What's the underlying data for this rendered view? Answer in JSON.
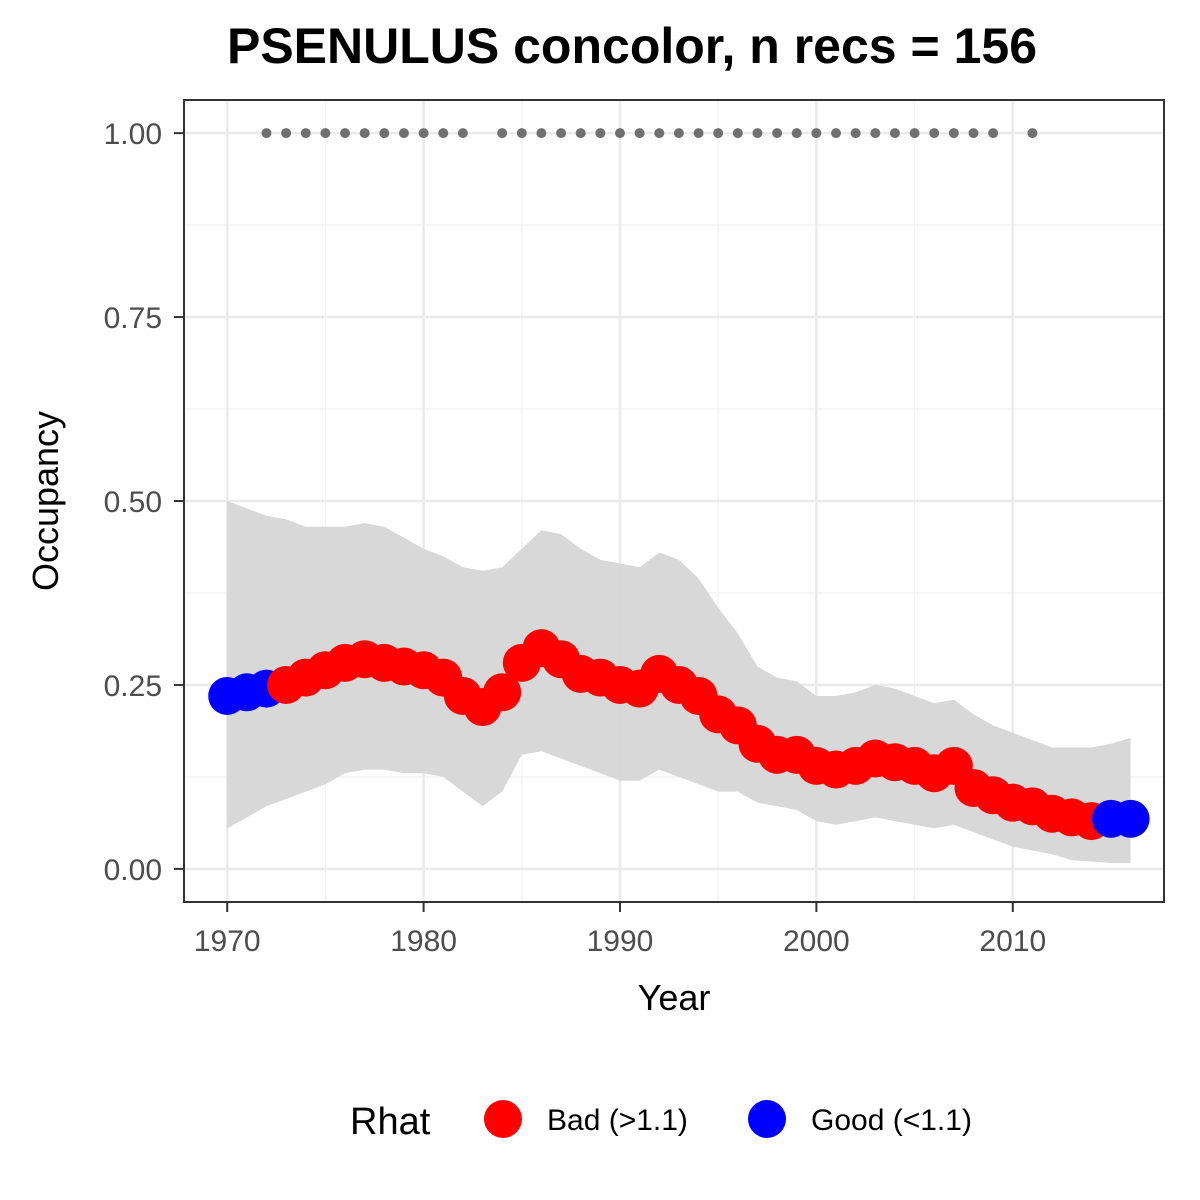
{
  "chart_data": {
    "type": "line",
    "title": "PSENULUS concolor, n recs = 156",
    "xlabel": "Year",
    "ylabel": "Occupancy",
    "xlim": [
      1967.8,
      2017.7
    ],
    "ylim": [
      -0.045,
      1.045
    ],
    "x_ticks": [
      1970,
      1980,
      1990,
      2000,
      2010
    ],
    "x_tick_labels": [
      "1970",
      "1980",
      "1990",
      "2000",
      "2010"
    ],
    "y_ticks": [
      0,
      0.25,
      0.5,
      0.75,
      1
    ],
    "y_tick_labels": [
      "0.00",
      "0.25",
      "0.50",
      "0.75",
      "1.00"
    ],
    "grid": true,
    "legend_position": "bottom",
    "legend": {
      "title": "Rhat",
      "entries": [
        {
          "label": "Bad (>1.1)",
          "color": "#ff0000"
        },
        {
          "label": "Good (<1.1)",
          "color": "#0000ff"
        }
      ]
    },
    "colors": {
      "bad": "#ff0000",
      "good": "#0000ff",
      "ribbon": "#d6d6d6",
      "records": "#707070"
    },
    "series": [
      {
        "x": [
          1970,
          1971,
          1972,
          1973,
          1974,
          1975,
          1976,
          1977,
          1978,
          1979,
          1980,
          1981,
          1982,
          1983,
          1984,
          1985,
          1986,
          1987,
          1988,
          1989,
          1990,
          1991,
          1992,
          1993,
          1994,
          1995,
          1996,
          1997,
          1998,
          1999,
          2000,
          2001,
          2002,
          2003,
          2004,
          2005,
          2006,
          2007,
          2008,
          2009,
          2010,
          2011,
          2012,
          2013,
          2014,
          2015,
          2016
        ],
        "mean": [
          0.235,
          0.24,
          0.245,
          0.25,
          0.26,
          0.27,
          0.28,
          0.285,
          0.28,
          0.275,
          0.27,
          0.26,
          0.235,
          0.22,
          0.24,
          0.28,
          0.3,
          0.285,
          0.265,
          0.26,
          0.25,
          0.245,
          0.265,
          0.25,
          0.235,
          0.21,
          0.195,
          0.17,
          0.155,
          0.155,
          0.14,
          0.135,
          0.14,
          0.15,
          0.145,
          0.14,
          0.13,
          0.14,
          0.11,
          0.1,
          0.09,
          0.085,
          0.075,
          0.07,
          0.065,
          0.068,
          0.068
        ],
        "lower": [
          0.055,
          0.07,
          0.085,
          0.095,
          0.105,
          0.115,
          0.13,
          0.135,
          0.135,
          0.13,
          0.13,
          0.125,
          0.105,
          0.085,
          0.105,
          0.155,
          0.16,
          0.15,
          0.14,
          0.13,
          0.12,
          0.12,
          0.135,
          0.125,
          0.115,
          0.105,
          0.105,
          0.09,
          0.085,
          0.08,
          0.065,
          0.06,
          0.065,
          0.07,
          0.065,
          0.06,
          0.055,
          0.06,
          0.05,
          0.04,
          0.03,
          0.025,
          0.02,
          0.012,
          0.01,
          0.008,
          0.008
        ],
        "upper": [
          0.5,
          0.49,
          0.48,
          0.475,
          0.465,
          0.465,
          0.465,
          0.47,
          0.465,
          0.45,
          0.435,
          0.425,
          0.41,
          0.405,
          0.41,
          0.435,
          0.46,
          0.455,
          0.435,
          0.42,
          0.415,
          0.41,
          0.43,
          0.42,
          0.395,
          0.355,
          0.32,
          0.275,
          0.26,
          0.255,
          0.235,
          0.235,
          0.24,
          0.25,
          0.245,
          0.235,
          0.225,
          0.23,
          0.21,
          0.195,
          0.185,
          0.175,
          0.165,
          0.165,
          0.165,
          0.17,
          0.178
        ],
        "rhat": [
          "good",
          "good",
          "good",
          "bad",
          "bad",
          "bad",
          "bad",
          "bad",
          "bad",
          "bad",
          "bad",
          "bad",
          "bad",
          "bad",
          "bad",
          "bad",
          "bad",
          "bad",
          "bad",
          "bad",
          "bad",
          "bad",
          "bad",
          "bad",
          "bad",
          "bad",
          "bad",
          "bad",
          "bad",
          "bad",
          "bad",
          "bad",
          "bad",
          "bad",
          "bad",
          "bad",
          "bad",
          "bad",
          "bad",
          "bad",
          "bad",
          "bad",
          "bad",
          "bad",
          "bad",
          "good",
          "good"
        ]
      },
      {
        "x": [
          1972,
          1973,
          1974,
          1975,
          1976,
          1977,
          1978,
          1979,
          1980,
          1981,
          1982,
          1984,
          1985,
          1986,
          1987,
          1988,
          1989,
          1990,
          1991,
          1992,
          1993,
          1994,
          1995,
          1996,
          1997,
          1998,
          1999,
          2000,
          2001,
          2002,
          2003,
          2004,
          2005,
          2006,
          2007,
          2008,
          2009,
          2011
        ],
        "y": [
          1,
          1,
          1,
          1,
          1,
          1,
          1,
          1,
          1,
          1,
          1,
          1,
          1,
          1,
          1,
          1,
          1,
          1,
          1,
          1,
          1,
          1,
          1,
          1,
          1,
          1,
          1,
          1,
          1,
          1,
          1,
          1,
          1,
          1,
          1,
          1,
          1,
          1
        ]
      }
    ]
  }
}
